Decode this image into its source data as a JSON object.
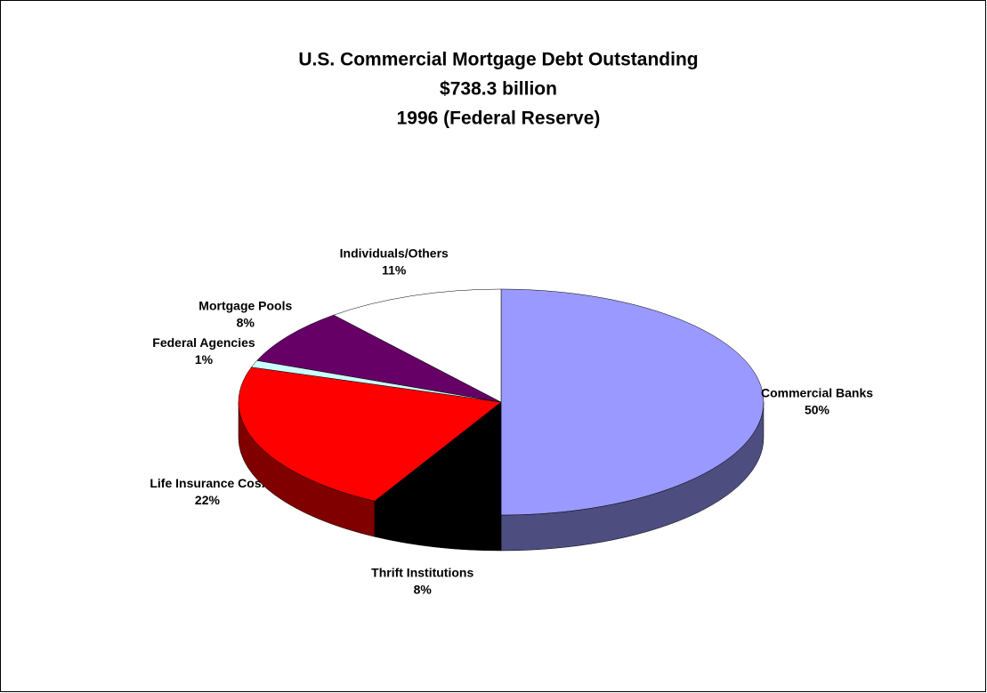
{
  "chart_data": {
    "type": "pie",
    "title": "U.S. Commercial Mortgage Debt Outstanding",
    "subtitle": [
      "$738.3 billion",
      "1996 (Federal Reserve)"
    ],
    "categories": [
      "Commercial Banks",
      "Thrift Institutions",
      "Life Insurance Cos.",
      "Federal Agencies",
      "Mortgage Pools",
      "Individuals/Others"
    ],
    "values": [
      50,
      8,
      22,
      1,
      8,
      11
    ],
    "value_labels": [
      "50%",
      "8%",
      "22%",
      "1%",
      "8%",
      "11%"
    ],
    "colors": [
      "#9999ff",
      "#000000",
      "#ff0000",
      "#ccffff",
      "#660066",
      "#ffffff"
    ]
  }
}
